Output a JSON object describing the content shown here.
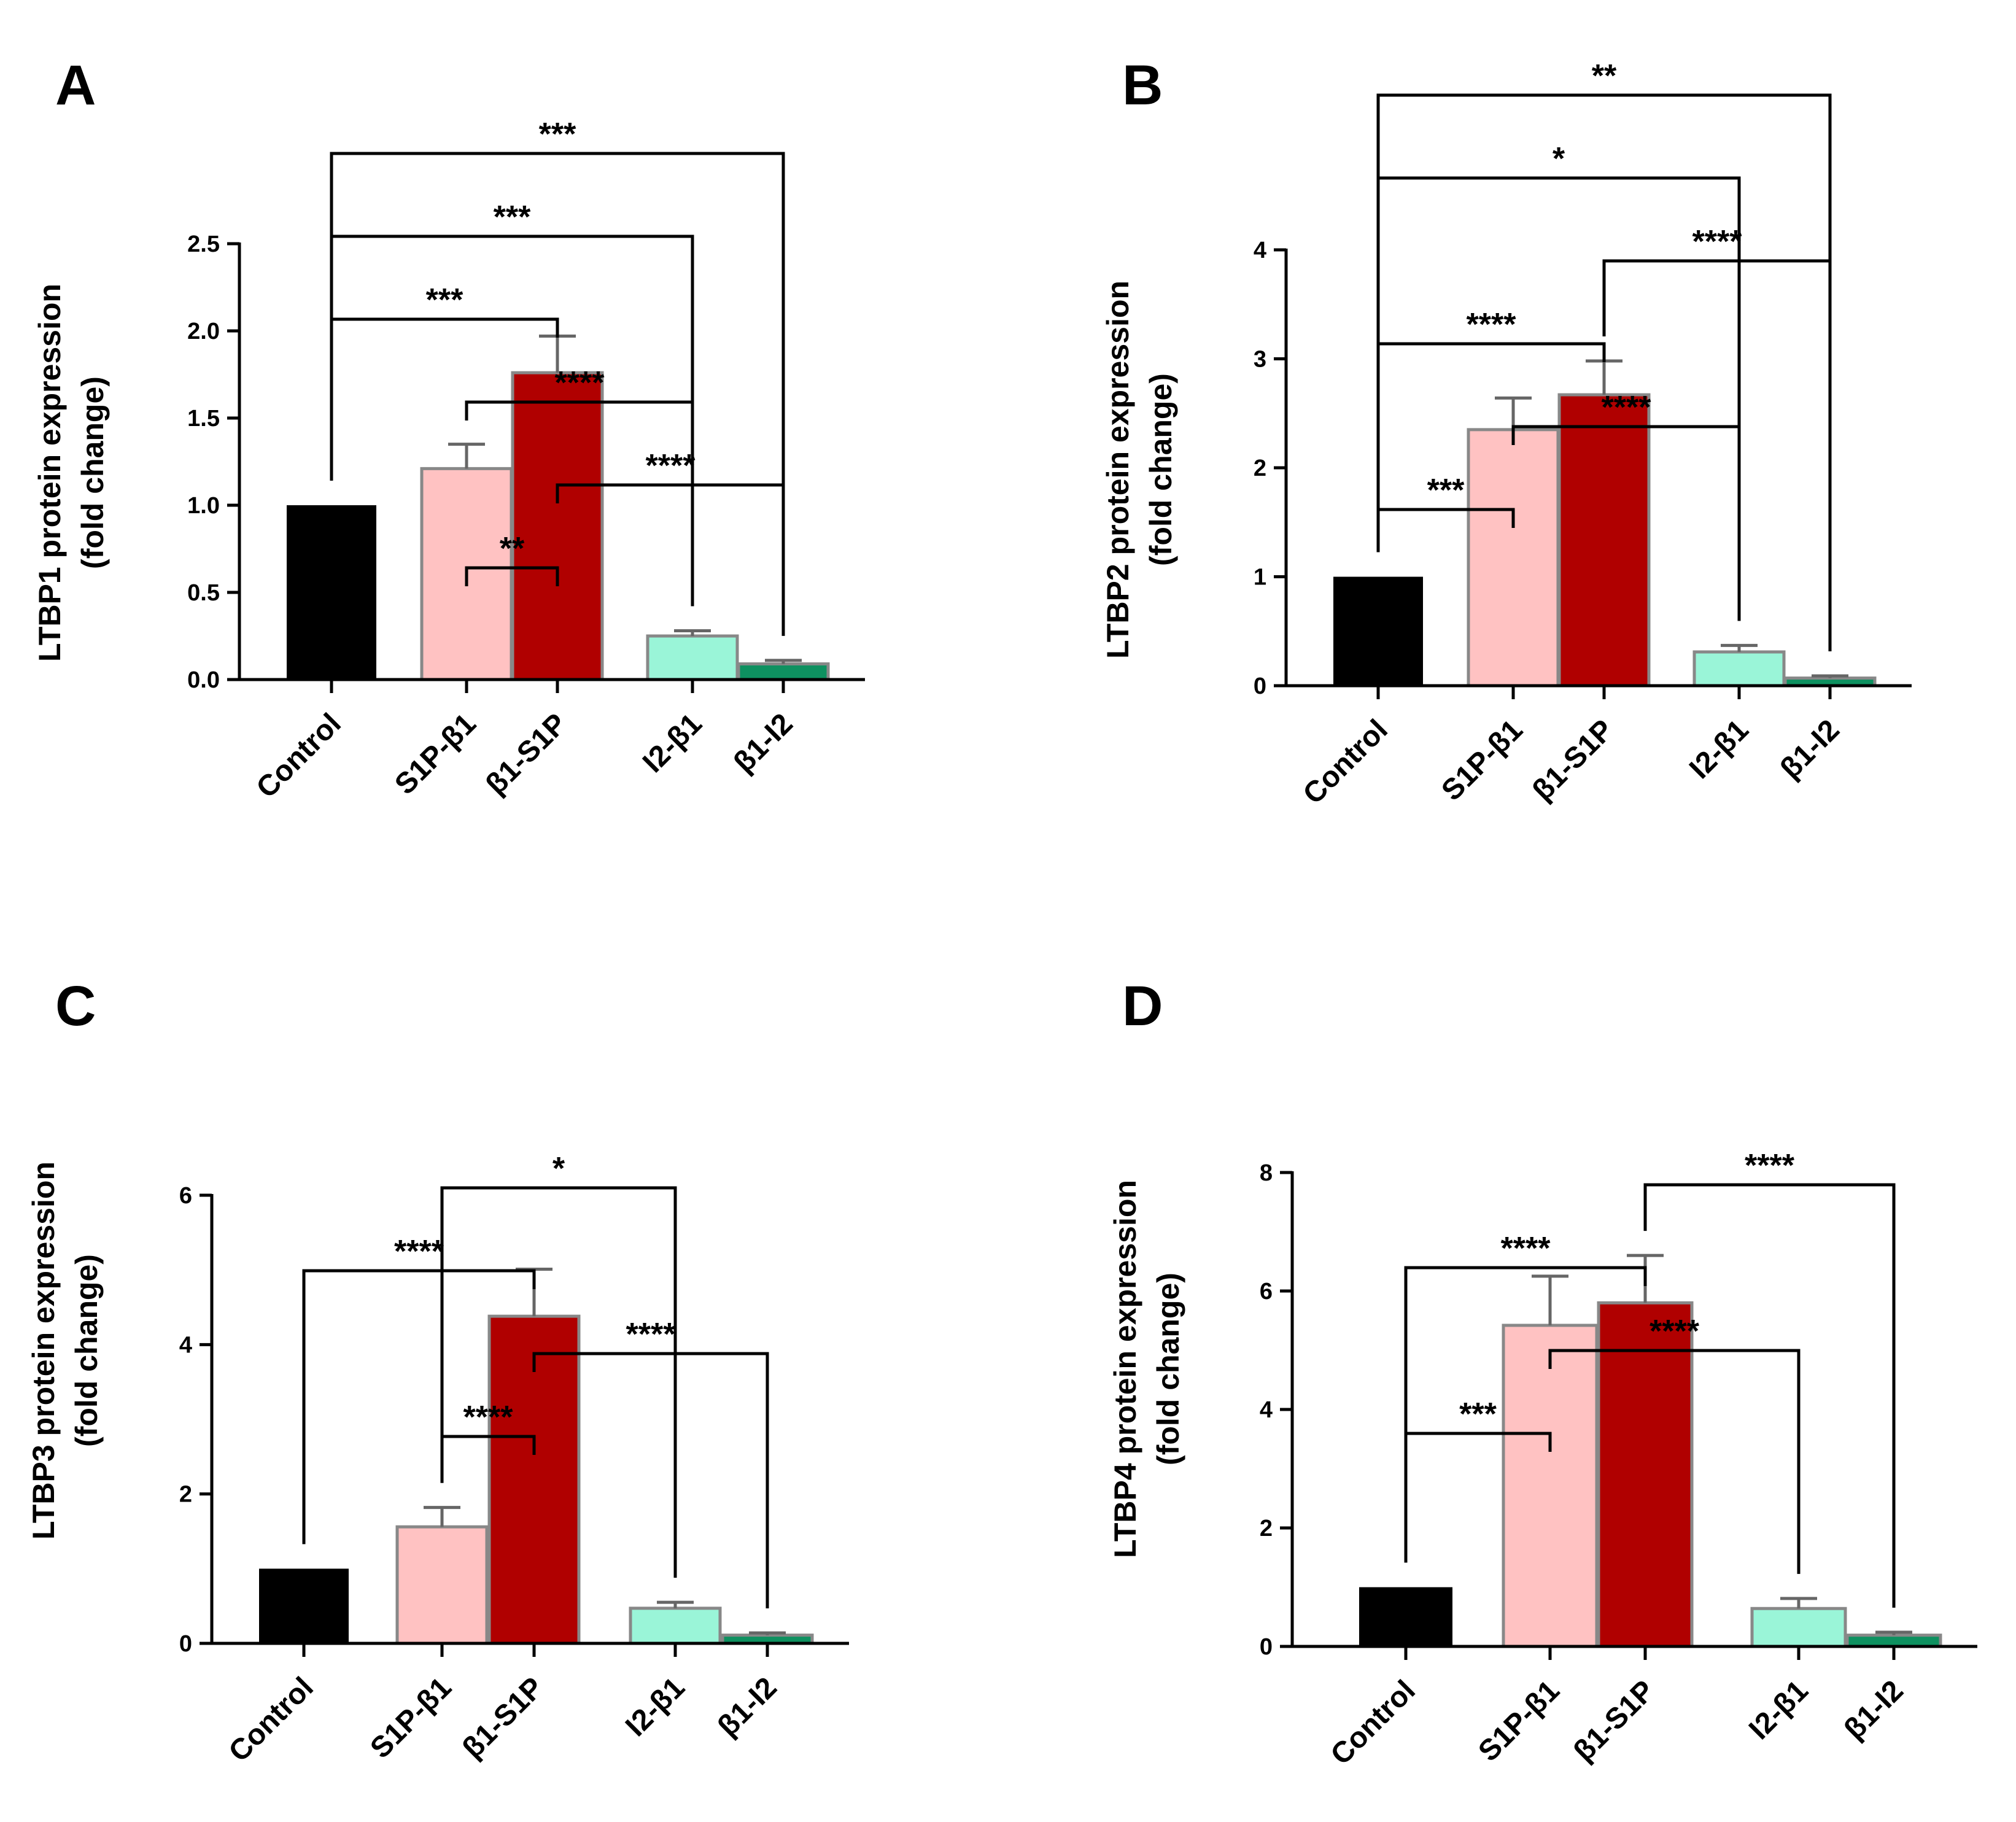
{
  "figure": {
    "colors": {
      "Control": "#000000",
      "S1P-β1": "#FFC2C2",
      "β1-S1P": "#B00000",
      "I2-β1": "#9AF5D8",
      "β1-I2": "#0E9160",
      "bar_edge": "#888888",
      "error_bar": "#666666",
      "axis": "#000000"
    }
  },
  "chart_data": [
    {
      "panel": "A",
      "type": "bar",
      "categories": [
        "Control",
        "S1P-β1",
        "β1-S1P",
        "I2-β1",
        "β1-I2"
      ],
      "values": [
        1.0,
        1.21,
        1.76,
        0.25,
        0.09
      ],
      "errors": [
        0.0,
        0.14,
        0.21,
        0.03,
        0.02
      ],
      "ylabel": [
        "LTBP1 protein expression",
        "(fold change)"
      ],
      "yticks": [
        "0.0",
        "0.5",
        "1.0",
        "1.5",
        "2.0",
        "2.5"
      ],
      "ylim": [
        0,
        2.5
      ],
      "comparisons": [
        {
          "from": 1,
          "to": 2,
          "label": "**"
        },
        {
          "from": 2,
          "to": 4,
          "label": "****"
        },
        {
          "from": 1,
          "to": 3,
          "label": "****"
        },
        {
          "from": 0,
          "to": 2,
          "label": "***"
        },
        {
          "from": 0,
          "to": 3,
          "label": "***"
        },
        {
          "from": 0,
          "to": 4,
          "label": "***"
        }
      ]
    },
    {
      "panel": "B",
      "type": "bar",
      "categories": [
        "Control",
        "S1P-β1",
        "β1-S1P",
        "I2-β1",
        "β1-I2"
      ],
      "values": [
        1.0,
        2.35,
        2.67,
        0.31,
        0.07
      ],
      "errors": [
        0.0,
        0.29,
        0.31,
        0.06,
        0.02
      ],
      "ylabel": [
        "LTBP2 protein expression",
        "(fold change)"
      ],
      "yticks": [
        "0",
        "1",
        "2",
        "3",
        "4"
      ],
      "ylim": [
        0,
        4
      ],
      "comparisons": [
        {
          "from": 0,
          "to": 1,
          "label": "***"
        },
        {
          "from": 1,
          "to": 3,
          "label": "****"
        },
        {
          "from": 0,
          "to": 2,
          "label": "****"
        },
        {
          "from": 2,
          "to": 4,
          "label": "****"
        },
        {
          "from": 0,
          "to": 3,
          "label": "*"
        },
        {
          "from": 0,
          "to": 4,
          "label": "**"
        }
      ]
    },
    {
      "panel": "C",
      "type": "bar",
      "categories": [
        "Control",
        "S1P-β1",
        "β1-S1P",
        "I2-β1",
        "β1-I2"
      ],
      "values": [
        1.0,
        1.56,
        4.38,
        0.47,
        0.11
      ],
      "errors": [
        0.0,
        0.26,
        0.63,
        0.08,
        0.03
      ],
      "ylabel": [
        "LTBP3 protein expression",
        "(fold change)"
      ],
      "yticks": [
        "0",
        "2",
        "4",
        "6"
      ],
      "ylim": [
        0,
        6
      ],
      "comparisons": [
        {
          "from": 1,
          "to": 2,
          "label": "****"
        },
        {
          "from": 2,
          "to": 4,
          "label": "****"
        },
        {
          "from": 0,
          "to": 2,
          "label": "****"
        },
        {
          "from": 1,
          "to": 3,
          "label": "*"
        }
      ]
    },
    {
      "panel": "D",
      "type": "bar",
      "categories": [
        "Control",
        "S1P-β1",
        "β1-S1P",
        "I2-β1",
        "β1-I2"
      ],
      "values": [
        1.0,
        5.42,
        5.8,
        0.64,
        0.19
      ],
      "errors": [
        0.0,
        0.83,
        0.8,
        0.17,
        0.05
      ],
      "ylabel": [
        "LTBP4 protein expression",
        "(fold change)"
      ],
      "yticks": [
        "0",
        "2",
        "4",
        "6",
        "8"
      ],
      "ylim": [
        0,
        8
      ],
      "comparisons": [
        {
          "from": 0,
          "to": 1,
          "label": "***"
        },
        {
          "from": 1,
          "to": 3,
          "label": "****"
        },
        {
          "from": 0,
          "to": 2,
          "label": "****"
        },
        {
          "from": 2,
          "to": 4,
          "label": "****"
        }
      ]
    }
  ]
}
